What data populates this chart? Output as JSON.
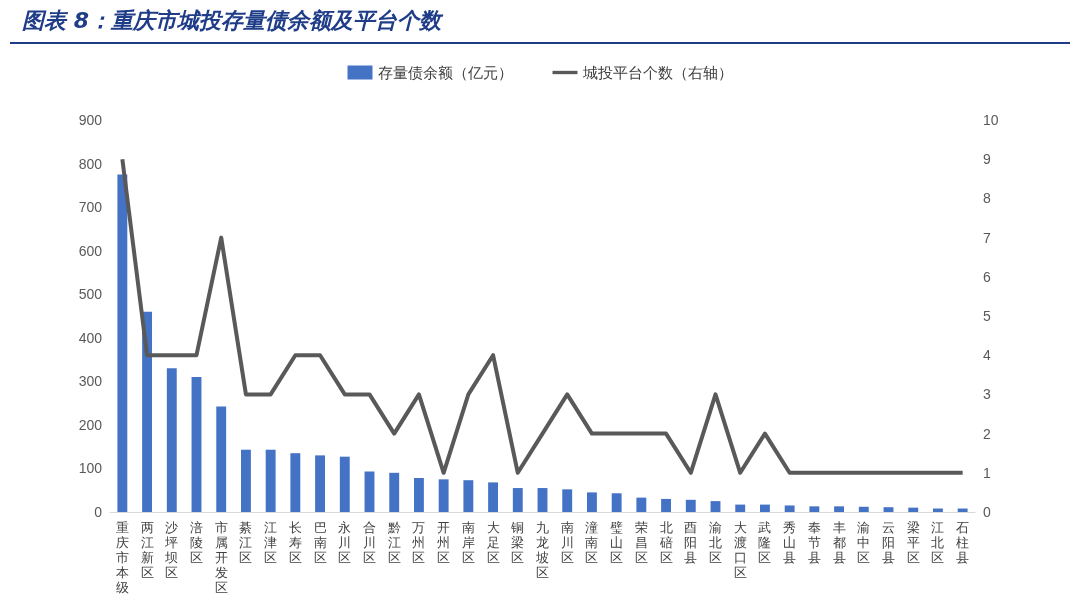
{
  "chart_data": {
    "type": "bar",
    "title": "图表 8：重庆市城投存量债余额及平台个数",
    "categories": [
      "重庆市本级",
      "两江新区",
      "沙坪坝区",
      "涪陵区",
      "市属开发区",
      "綦江区",
      "江津区",
      "长寿区",
      "巴南区",
      "永川区",
      "合川区",
      "黔江区",
      "万州区",
      "开州区",
      "南岸区",
      "大足区",
      "铜梁区",
      "九龙坡区",
      "南川区",
      "潼南区",
      "璧山区",
      "荣昌区",
      "北碚区",
      "酉阳县",
      "渝北区",
      "大渡口区",
      "武隆区",
      "秀山县",
      "奉节县",
      "丰都县",
      "渝中区",
      "云阳县",
      "梁平区",
      "江北区",
      "石柱县"
    ],
    "series": [
      {
        "name": "存量债余额（亿元）",
        "color": "#4472c4",
        "values": [
          775,
          460,
          330,
          310,
          242,
          143,
          143,
          135,
          130,
          127,
          93,
          90,
          78,
          75,
          73,
          68,
          55,
          55,
          52,
          45,
          43,
          33,
          30,
          28,
          25,
          17,
          17,
          15,
          13,
          13,
          12,
          11,
          10,
          8,
          8
        ]
      },
      {
        "name": "城投平台个数（右轴）",
        "type": "line",
        "axis": "y2",
        "color": "#595959",
        "values": [
          9,
          4,
          4,
          4,
          7,
          3,
          3,
          4,
          4,
          3,
          3,
          2,
          3,
          1,
          3,
          4,
          1,
          2,
          3,
          2,
          2,
          2,
          2,
          1,
          3,
          1,
          2,
          1,
          1,
          1,
          1,
          1,
          1,
          1,
          1
        ]
      }
    ],
    "ylim": [
      0,
      900
    ],
    "yticks": [
      0,
      100,
      200,
      300,
      400,
      500,
      600,
      700,
      800,
      900
    ],
    "y2lim": [
      0,
      10
    ],
    "y2ticks": [
      0,
      1,
      2,
      3,
      4,
      5,
      6,
      7,
      8,
      9,
      10
    ],
    "grid": false,
    "legend": "top",
    "marker": "none",
    "line_style": "solid"
  }
}
